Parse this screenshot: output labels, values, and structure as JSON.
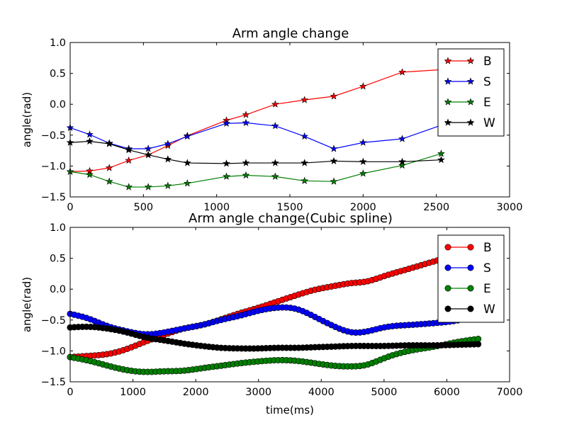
{
  "chart_data": [
    {
      "type": "line",
      "title": "Arm angle change",
      "xlabel": "",
      "ylabel": "angle(rad)",
      "xlim": [
        0,
        3000
      ],
      "ylim": [
        -1.5,
        1.0
      ],
      "xticks": [
        "0",
        "500",
        "1000",
        "1500",
        "2000",
        "2500",
        "3000"
      ],
      "yticks": [
        "−1.5",
        "−1.0",
        "−0.5",
        "0.0",
        "0.5",
        "1.0"
      ],
      "marker": "star",
      "legend_position": "upper-right",
      "x": [
        0,
        133,
        267,
        400,
        533,
        667,
        800,
        1067,
        1200,
        1400,
        1600,
        1800,
        2000,
        2267,
        2533
      ],
      "series": [
        {
          "name": "B",
          "color": "#ff0000",
          "values": [
            -1.09,
            -1.08,
            -1.03,
            -0.91,
            -0.82,
            -0.67,
            -0.51,
            -0.26,
            -0.17,
            0.0,
            0.07,
            0.13,
            0.29,
            0.52,
            0.56
          ]
        },
        {
          "name": "S",
          "color": "#0000ff",
          "values": [
            -0.38,
            -0.49,
            -0.63,
            -0.72,
            -0.72,
            -0.64,
            -0.52,
            -0.31,
            -0.3,
            -0.35,
            -0.52,
            -0.72,
            -0.62,
            -0.56,
            -0.34
          ]
        },
        {
          "name": "E",
          "color": "#008000",
          "values": [
            -1.09,
            -1.14,
            -1.25,
            -1.34,
            -1.34,
            -1.32,
            -1.28,
            -1.17,
            -1.15,
            -1.17,
            -1.24,
            -1.25,
            -1.12,
            -0.99,
            -0.8
          ]
        },
        {
          "name": "W",
          "color": "#000000",
          "values": [
            -0.62,
            -0.6,
            -0.64,
            -0.74,
            -0.82,
            -0.89,
            -0.95,
            -0.96,
            -0.95,
            -0.95,
            -0.95,
            -0.92,
            -0.93,
            -0.93,
            -0.9
          ]
        }
      ]
    },
    {
      "type": "line",
      "title": "Arm angle change(Cubic spline)",
      "xlabel": "time(ms)",
      "ylabel": "angle(rad)",
      "xlim": [
        0,
        7000
      ],
      "ylim": [
        -1.5,
        1.0
      ],
      "xticks": [
        "0",
        "1000",
        "2000",
        "3000",
        "4000",
        "5000",
        "6000",
        "7000"
      ],
      "yticks": [
        "−1.5",
        "−1.0",
        "−0.5",
        "0.0",
        "0.5",
        "1.0"
      ],
      "marker": "circle",
      "legend_position": "upper-right",
      "x_range": [
        0,
        6550
      ],
      "x_step": 65,
      "knots_x": [
        0,
        300,
        600,
        900,
        1200,
        1500,
        1800,
        2100,
        2400,
        2700,
        3000,
        3300,
        3600,
        3900,
        4200,
        4500,
        4700,
        5000,
        5400,
        5800,
        6200,
        6550
      ],
      "series": [
        {
          "name": "B",
          "color": "#ff0000",
          "knots_y": [
            -1.1,
            -1.08,
            -1.05,
            -0.97,
            -0.85,
            -0.74,
            -0.64,
            -0.58,
            -0.49,
            -0.39,
            -0.3,
            -0.2,
            -0.1,
            -0.01,
            0.05,
            0.1,
            0.12,
            0.21,
            0.33,
            0.45,
            0.54,
            0.57
          ]
        },
        {
          "name": "S",
          "color": "#0000ff",
          "knots_y": [
            -0.4,
            -0.48,
            -0.6,
            -0.68,
            -0.73,
            -0.7,
            -0.64,
            -0.58,
            -0.5,
            -0.43,
            -0.35,
            -0.3,
            -0.32,
            -0.45,
            -0.6,
            -0.7,
            -0.69,
            -0.62,
            -0.58,
            -0.55,
            -0.5,
            -0.4
          ]
        },
        {
          "name": "E",
          "color": "#008000",
          "knots_y": [
            -1.1,
            -1.16,
            -1.24,
            -1.31,
            -1.34,
            -1.33,
            -1.32,
            -1.28,
            -1.24,
            -1.2,
            -1.17,
            -1.15,
            -1.16,
            -1.2,
            -1.24,
            -1.25,
            -1.23,
            -1.12,
            -1.0,
            -0.93,
            -0.85,
            -0.8
          ]
        },
        {
          "name": "W",
          "color": "#000000",
          "knots_y": [
            -0.62,
            -0.61,
            -0.64,
            -0.7,
            -0.78,
            -0.83,
            -0.88,
            -0.92,
            -0.95,
            -0.96,
            -0.96,
            -0.95,
            -0.95,
            -0.94,
            -0.93,
            -0.92,
            -0.92,
            -0.92,
            -0.91,
            -0.91,
            -0.9,
            -0.89
          ]
        }
      ]
    }
  ]
}
